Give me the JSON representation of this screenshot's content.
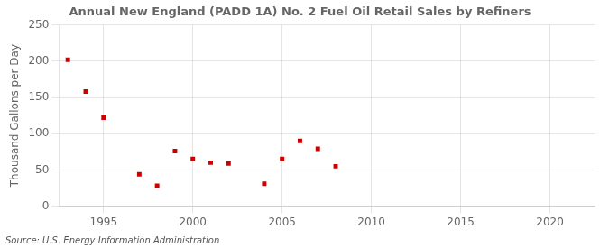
{
  "chart_data": {
    "type": "scatter",
    "title": "Annual New England (PADD 1A) No. 2 Fuel Oil Retail Sales by Refiners",
    "y_label": "Thousand Gallons per Day",
    "source": "Source: U.S. Energy Information Administration",
    "x": [
      1993,
      1994,
      1995,
      1997,
      1998,
      1999,
      2000,
      2001,
      2002,
      2004,
      2005,
      2006,
      2007,
      2008
    ],
    "values": [
      202,
      158,
      122,
      44,
      28,
      76,
      65,
      60,
      59,
      31,
      65,
      90,
      79,
      55
    ],
    "color": "#cc0000",
    "marker": "square",
    "xlim": [
      1992.5,
      2022.5
    ],
    "ylim": [
      0,
      250
    ],
    "xticks": [
      1995,
      2000,
      2005,
      2010,
      2015,
      2020
    ],
    "yticks": [
      0,
      50,
      100,
      150,
      200,
      250
    ],
    "grid": true
  }
}
